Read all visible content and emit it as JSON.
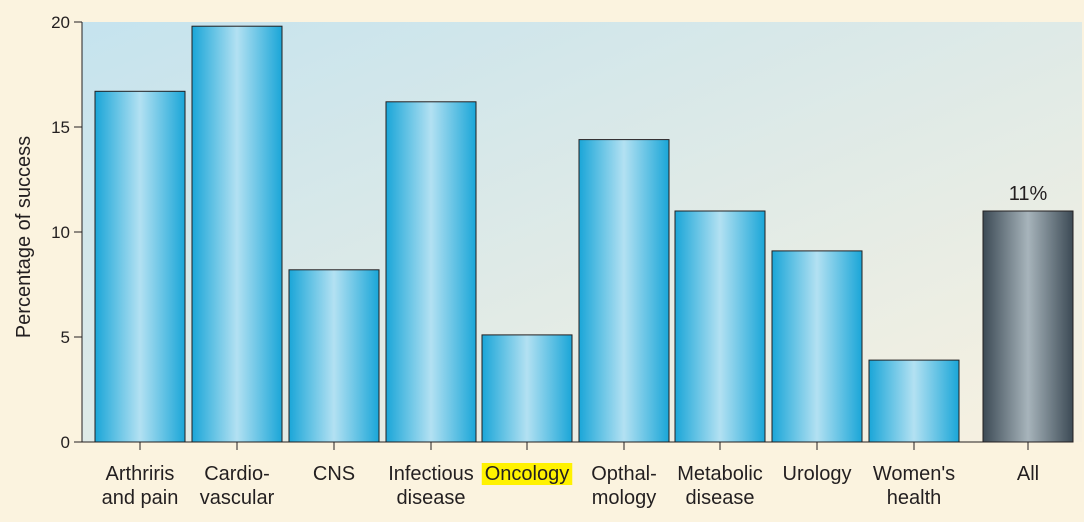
{
  "chart_data": {
    "type": "bar",
    "title": "",
    "xlabel": "",
    "ylabel": "Percentage of success",
    "ylim": [
      0,
      20
    ],
    "yticks": [
      0,
      5,
      10,
      15,
      20
    ],
    "grid": false,
    "categories": [
      {
        "lines": [
          "Arthriris",
          "and pain"
        ],
        "value": 16.7,
        "style": "area"
      },
      {
        "lines": [
          "Cardio-",
          "vascular"
        ],
        "value": 19.8,
        "style": "area"
      },
      {
        "lines": [
          "CNS"
        ],
        "value": 8.2,
        "style": "area"
      },
      {
        "lines": [
          "Infectious",
          "disease"
        ],
        "value": 16.2,
        "style": "area"
      },
      {
        "lines": [
          "Oncology"
        ],
        "value": 5.1,
        "style": "area",
        "highlight": true
      },
      {
        "lines": [
          "Opthal-",
          "mology"
        ],
        "value": 14.4,
        "style": "area"
      },
      {
        "lines": [
          "Metabolic",
          "disease"
        ],
        "value": 11.0,
        "style": "area"
      },
      {
        "lines": [
          "Urology"
        ],
        "value": 9.1,
        "style": "area"
      },
      {
        "lines": [
          "Women's",
          "health"
        ],
        "value": 3.9,
        "style": "area"
      },
      {
        "lines": [
          "All"
        ],
        "value": 11.0,
        "style": "overall",
        "data_label": "11%"
      }
    ],
    "colors": {
      "bar_light": "#b3e1f2",
      "bar_dark": "#1aa6d8",
      "overall_light": "#a7b4bb",
      "overall_dark": "#3c4a55",
      "highlight": "#fff200",
      "plot_bg_start": "#c5e3ee",
      "plot_bg_end": "#f8f1e0",
      "page_bg": "#fbf3df"
    }
  }
}
